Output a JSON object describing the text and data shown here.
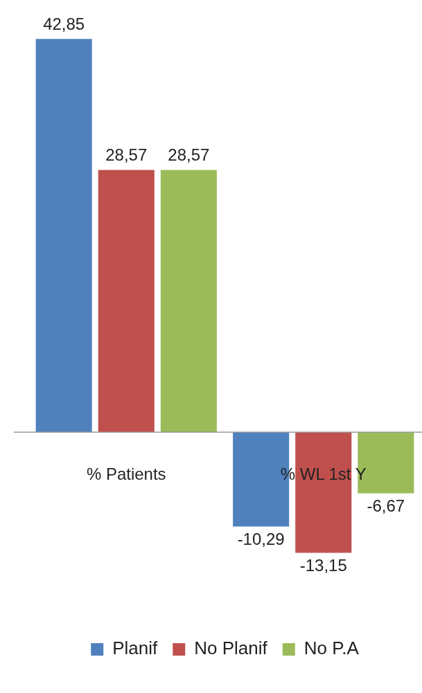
{
  "chart_data": {
    "type": "bar",
    "categories": [
      "% Patients",
      "% WL 1st Y"
    ],
    "series": [
      {
        "name": "Planif",
        "color": "#4f81bd",
        "values": [
          42.85,
          -10.29
        ],
        "value_labels": [
          "42,85",
          "-10,29"
        ]
      },
      {
        "name": "No Planif",
        "color": "#c0504d",
        "values": [
          28.57,
          -13.15
        ],
        "value_labels": [
          "28,57",
          "-13,15"
        ]
      },
      {
        "name": "No P.A",
        "color": "#9bbb59",
        "values": [
          28.57,
          -6.67
        ],
        "value_labels": [
          "28,57",
          "-6,67"
        ]
      }
    ],
    "grid": false,
    "legend": "bottom"
  }
}
